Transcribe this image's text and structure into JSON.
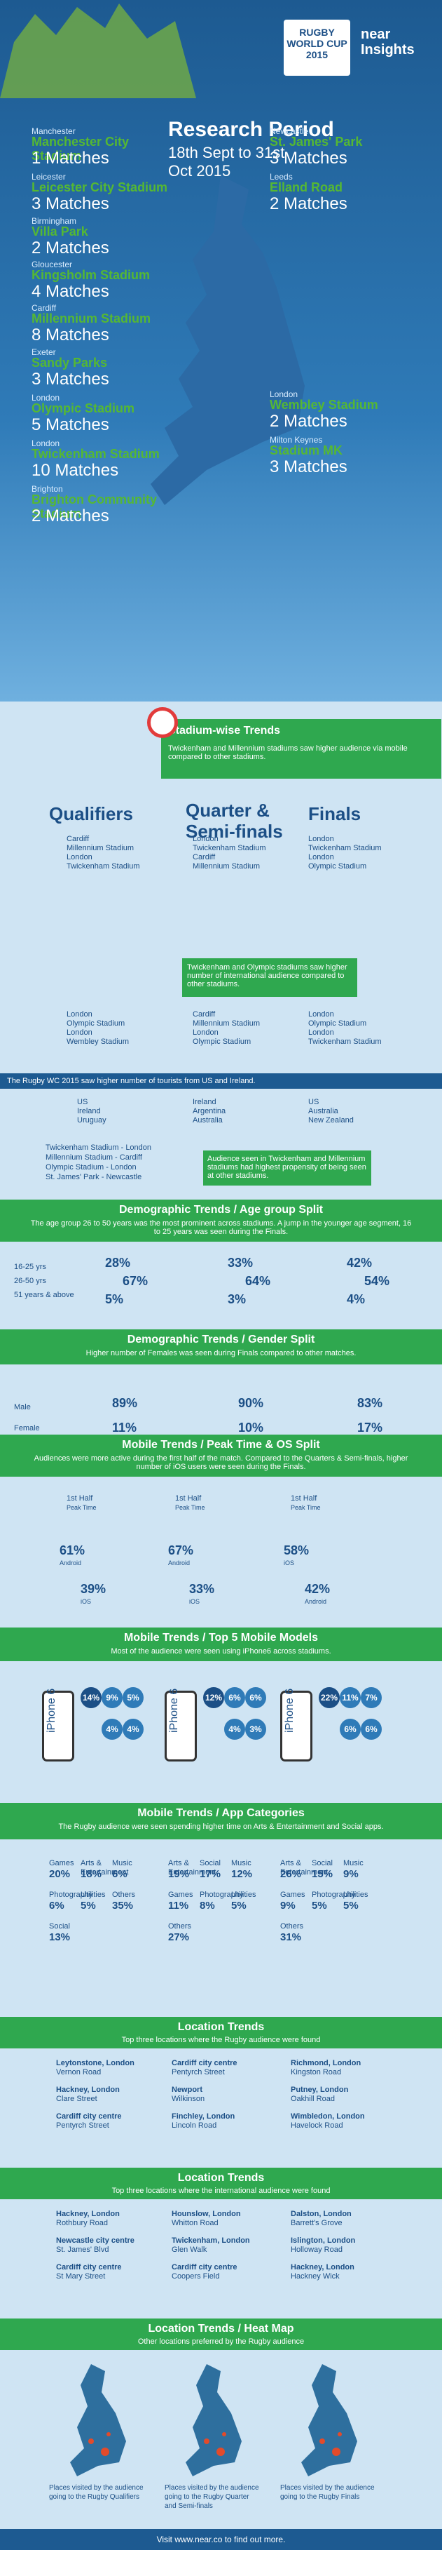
{
  "header": {
    "logo_title": "RUGBY WORLD CUP 2015",
    "brand": "near Insights",
    "period_title": "Research Period",
    "period_dates": "18th Sept to 31st Oct 2015"
  },
  "stadiums": [
    {
      "city": "Manchester",
      "name": "Manchester City Stadium",
      "matches": "1 Matches"
    },
    {
      "city": "Leicester",
      "name": "Leicester City Stadium",
      "matches": "3 Matches"
    },
    {
      "city": "Birmingham",
      "name": "Villa Park",
      "matches": "2 Matches"
    },
    {
      "city": "Gloucester",
      "name": "Kingsholm Stadium",
      "matches": "4 Matches"
    },
    {
      "city": "Cardiff",
      "name": "Millennium Stadium",
      "matches": "8 Matches"
    },
    {
      "city": "Exeter",
      "name": "Sandy Parks",
      "matches": "3 Matches"
    },
    {
      "city": "London",
      "name": "Olympic Stadium",
      "matches": "5 Matches"
    },
    {
      "city": "London",
      "name": "Twickenham Stadium",
      "matches": "10 Matches"
    },
    {
      "city": "Brighton",
      "name": "Brighton Community Stadium",
      "matches": "2 Matches"
    },
    {
      "city": "Newcastle",
      "name": "St. James' Park",
      "matches": "3 Matches"
    },
    {
      "city": "Leeds",
      "name": "Elland Road",
      "matches": "2 Matches"
    },
    {
      "city": "London",
      "name": "Wembley Stadium",
      "matches": "2 Matches"
    },
    {
      "city": "Milton Keynes",
      "name": "Stadium MK",
      "matches": "3 Matches"
    }
  ],
  "stadium_trends": {
    "title": "Stadium-wise Trends",
    "text": "Twickenham and Millennium stadiums saw higher audience via mobile compared to other stadiums."
  },
  "stages": {
    "qualifiers": "Qualifiers",
    "quarter": "Quarter & Semi-finals",
    "finals": "Finals",
    "q_list": [
      "Cardiff",
      "Millennium Stadium",
      "London",
      "Twickenham Stadium"
    ],
    "qs_list": [
      "London",
      "Twickenham Stadium",
      "Cardiff",
      "Millennium Stadium"
    ],
    "f_list": [
      "London",
      "Twickenham Stadium",
      "London",
      "Olympic Stadium"
    ],
    "note": "Twickenham and Olympic stadiums saw higher number of international audience compared to other stadiums.",
    "q_list2": [
      "London",
      "Olympic Stadium",
      "London",
      "Wembley Stadium"
    ],
    "qs_list2": [
      "Cardiff",
      "Millennium Stadium",
      "London",
      "Olympic Stadium"
    ],
    "f_list2": [
      "London",
      "Olympic Stadium",
      "London",
      "Twickenham Stadium"
    ]
  },
  "tourists": {
    "text": "The Rugby WC 2015 saw higher number of tourists from US and Ireland.",
    "col1": [
      "US",
      "Ireland",
      "Uruguay"
    ],
    "col2": [
      "Ireland",
      "Argentina",
      "Australia"
    ],
    "col3": [
      "US",
      "Australia",
      "New Zealand"
    ],
    "list": [
      "Twickenham Stadium - London",
      "Millennium Stadium - Cardiff",
      "Olympic Stadium - London",
      "St. James' Park - Newcastle"
    ],
    "note": "Audience seen in Twickenham and Millennium stadiums had highest propensity of being seen at other stadiums."
  },
  "age": {
    "title": "Demographic Trends / Age group Split",
    "sub": "The age group 26 to 50 years was the most prominent across stadiums. A jump in the younger age segment, 16 to 25 years was seen during the Finals.",
    "labels": [
      "16-25 yrs",
      "26-50 yrs",
      "51 years & above"
    ],
    "q": [
      "28%",
      "67%",
      "5%"
    ],
    "qs": [
      "33%",
      "64%",
      "3%"
    ],
    "f": [
      "42%",
      "54%",
      "4%"
    ]
  },
  "gender": {
    "title": "Demographic Trends / Gender Split",
    "sub": "Higher number of Females was seen during Finals compared to other matches.",
    "male": "Male",
    "female": "Female",
    "q": [
      "89%",
      "11%"
    ],
    "qs": [
      "90%",
      "10%"
    ],
    "f": [
      "83%",
      "17%"
    ]
  },
  "mobile_os": {
    "title": "Mobile Trends / Peak Time & OS Split",
    "sub": "Audiences were more active during the first half of the match. Compared to the Quarters & Semi-finals, higher number of iOS users were seen during the Finals.",
    "half": "1st Half",
    "peak": "Peak Time",
    "q": [
      "61%",
      "Android",
      "39%",
      "iOS"
    ],
    "qs": [
      "67%",
      "Android",
      "33%",
      "iOS"
    ],
    "f": [
      "58%",
      "iOS",
      "42%",
      "Android"
    ]
  },
  "models": {
    "title": "Mobile Trends / Top 5 Mobile Models",
    "sub": "Most of the audience were seen using iPhone6 across stadiums.",
    "phone": "iPhone 6",
    "q": [
      "14%",
      "9%",
      "5%",
      "4%",
      "4%"
    ],
    "qs": [
      "12%",
      "6%",
      "6%",
      "4%",
      "3%"
    ],
    "f": [
      "22%",
      "11%",
      "7%",
      "6%",
      "6%"
    ]
  },
  "apps": {
    "title": "Mobile Trends / App Categories",
    "sub": "The Rugby audience were seen spending higher time on Arts & Entertainment and Social apps.",
    "q": [
      [
        "Games",
        "20%"
      ],
      [
        "Arts & Entertainment",
        "18%"
      ],
      [
        "Music",
        "6%"
      ],
      [
        "Photography",
        "6%"
      ],
      [
        "Utilities",
        "5%"
      ],
      [
        "Others",
        "35%"
      ],
      [
        "Social",
        "13%"
      ]
    ],
    "qs": [
      [
        "Arts & Entertainment",
        "19%"
      ],
      [
        "Social",
        "17%"
      ],
      [
        "Music",
        "12%"
      ],
      [
        "Games",
        "11%"
      ],
      [
        "Photography",
        "8%"
      ],
      [
        "Utilities",
        "5%"
      ],
      [
        "Others",
        "27%"
      ]
    ],
    "f": [
      [
        "Arts & Entertainment",
        "26%"
      ],
      [
        "Social",
        "15%"
      ],
      [
        "Music",
        "9%"
      ],
      [
        "Games",
        "9%"
      ],
      [
        "Photography",
        "5%"
      ],
      [
        "Utilities",
        "5%"
      ],
      [
        "Others",
        "31%"
      ]
    ]
  },
  "loc1": {
    "title": "Location Trends",
    "sub": "Top three locations where the Rugby audience were found",
    "q": [
      "Leytonstone, London",
      "Vernon Road",
      "Hackney, London",
      "Clare Street",
      "Cardiff city centre",
      "Pentyrch Street"
    ],
    "qs": [
      "Cardiff city centre",
      "Pentyrch Street",
      "Newport",
      "Wilkinson",
      "Finchley, London",
      "Lincoln Road"
    ],
    "f": [
      "Richmond, London",
      "Kingston Road",
      "Putney, London",
      "Oakhill Road",
      "Wimbledon, London",
      "Havelock Road"
    ]
  },
  "loc2": {
    "title": "Location Trends",
    "sub": "Top three locations where the international audience were found",
    "q": [
      "Hackney, London",
      "Rothbury Road",
      "Newcastle city centre",
      "St. James' Blvd",
      "Cardiff city centre",
      "St Mary Street"
    ],
    "qs": [
      "Hounslow, London",
      "Whitton Road",
      "Twickenham, London",
      "Glen Walk",
      "Cardiff city centre",
      "Coopers Field"
    ],
    "f": [
      "Dalston, London",
      "Barrett's Grove",
      "Islington, London",
      "Holloway Road",
      "Hackney, London",
      "Hackney Wick"
    ]
  },
  "heatmap": {
    "title": "Location Trends / Heat Map",
    "sub": "Other locations preferred by the Rugby audience",
    "labels": [
      "Places visited by the audience going to the Rugby Qualifiers",
      "Places visited by the audience going to the Rugby Quarter and Semi-finals",
      "Places visited by the audience going to the Rugby Finals"
    ]
  },
  "footer": "Visit www.near.co to find out more."
}
